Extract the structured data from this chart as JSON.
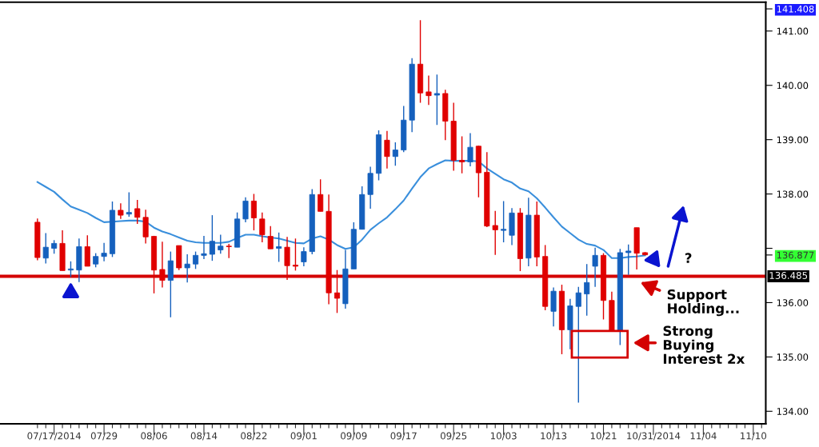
{
  "chart_data": {
    "type": "candlestick",
    "categories": [
      null,
      null,
      "07/17/2014",
      null,
      null,
      null,
      null,
      null,
      "07/29",
      null,
      null,
      null,
      null,
      null,
      "08/06",
      null,
      null,
      null,
      null,
      null,
      "08/14",
      null,
      null,
      null,
      null,
      null,
      "08/22",
      null,
      null,
      null,
      null,
      null,
      "09/01",
      null,
      null,
      null,
      null,
      null,
      "09/09",
      null,
      null,
      null,
      null,
      null,
      "09/17",
      null,
      null,
      null,
      null,
      null,
      "09/25",
      null,
      null,
      null,
      null,
      null,
      "10/03",
      null,
      null,
      null,
      null,
      null,
      "10/13",
      null,
      null,
      null,
      null,
      null,
      "10/21",
      null,
      null,
      null,
      null,
      null,
      "10/31/2014",
      null,
      null,
      null,
      null,
      null,
      "11/04",
      null,
      null,
      null,
      null,
      null,
      "11/10",
      null
    ],
    "ohlc": [
      [
        137.48,
        137.55,
        136.78,
        136.83
      ],
      [
        136.82,
        137.28,
        136.72,
        137.02
      ],
      [
        137.0,
        137.15,
        136.9,
        137.09
      ],
      [
        137.09,
        137.33,
        136.59,
        136.59
      ],
      [
        136.6,
        136.76,
        136.47,
        136.62
      ],
      [
        136.6,
        137.18,
        136.38,
        137.03
      ],
      [
        137.03,
        137.24,
        136.67,
        136.67
      ],
      [
        136.71,
        136.91,
        136.65,
        136.85
      ],
      [
        136.85,
        137.1,
        136.76,
        136.91
      ],
      [
        136.9,
        137.86,
        136.84,
        137.7
      ],
      [
        137.7,
        137.83,
        137.54,
        137.61
      ],
      [
        137.63,
        138.03,
        137.58,
        137.66
      ],
      [
        137.73,
        137.89,
        137.45,
        137.57
      ],
      [
        137.57,
        137.71,
        137.09,
        137.21
      ],
      [
        137.22,
        137.23,
        136.17,
        136.6
      ],
      [
        136.61,
        137.12,
        136.28,
        136.41
      ],
      [
        136.41,
        136.94,
        135.73,
        136.77
      ],
      [
        137.05,
        137.05,
        136.6,
        136.64
      ],
      [
        136.64,
        136.89,
        136.37,
        136.71
      ],
      [
        136.71,
        136.94,
        136.62,
        136.87
      ],
      [
        136.87,
        137.23,
        136.8,
        136.9
      ],
      [
        136.89,
        137.61,
        136.77,
        137.13
      ],
      [
        136.97,
        137.25,
        136.9,
        137.04
      ],
      [
        137.04,
        137.08,
        136.82,
        137.03
      ],
      [
        137.02,
        137.66,
        137.02,
        137.54
      ],
      [
        137.54,
        137.94,
        137.48,
        137.87
      ],
      [
        137.87,
        138.0,
        137.33,
        137.56
      ],
      [
        137.54,
        137.66,
        137.11,
        137.25
      ],
      [
        137.22,
        137.41,
        136.99,
        136.99
      ],
      [
        137.0,
        137.29,
        136.75,
        137.03
      ],
      [
        137.02,
        137.21,
        136.42,
        136.68
      ],
      [
        136.69,
        137.18,
        136.59,
        136.67
      ],
      [
        136.75,
        137.02,
        136.67,
        136.94
      ],
      [
        136.94,
        138.09,
        136.89,
        137.99
      ],
      [
        137.99,
        138.27,
        137.68,
        137.68
      ],
      [
        137.68,
        137.99,
        135.97,
        136.18
      ],
      [
        136.18,
        136.6,
        135.81,
        136.08
      ],
      [
        135.98,
        136.97,
        135.89,
        136.62
      ],
      [
        136.62,
        137.48,
        136.62,
        137.35
      ],
      [
        137.35,
        138.14,
        137.35,
        137.99
      ],
      [
        137.99,
        138.5,
        137.73,
        138.38
      ],
      [
        138.38,
        139.17,
        138.25,
        139.09
      ],
      [
        138.99,
        139.16,
        138.47,
        138.69
      ],
      [
        138.69,
        138.95,
        138.52,
        138.81
      ],
      [
        138.81,
        139.62,
        138.77,
        139.36
      ],
      [
        139.36,
        140.5,
        139.14,
        140.39
      ],
      [
        140.39,
        141.2,
        139.68,
        139.86
      ],
      [
        139.88,
        140.18,
        139.64,
        139.81
      ],
      [
        139.82,
        140.2,
        139.27,
        139.85
      ],
      [
        139.85,
        139.92,
        138.99,
        139.34
      ],
      [
        139.34,
        139.68,
        138.43,
        138.62
      ],
      [
        138.62,
        139.06,
        138.38,
        138.59
      ],
      [
        138.59,
        139.12,
        138.51,
        138.86
      ],
      [
        138.88,
        138.89,
        137.94,
        138.39
      ],
      [
        138.4,
        138.77,
        137.39,
        137.41
      ],
      [
        137.42,
        137.69,
        136.88,
        137.34
      ],
      [
        137.33,
        137.87,
        137.11,
        137.35
      ],
      [
        137.24,
        137.74,
        137.06,
        137.65
      ],
      [
        137.65,
        137.74,
        136.58,
        136.81
      ],
      [
        136.82,
        137.93,
        136.67,
        137.61
      ],
      [
        137.61,
        137.86,
        136.67,
        136.84
      ],
      [
        136.85,
        137.06,
        135.86,
        135.93
      ],
      [
        135.84,
        136.28,
        135.56,
        136.21
      ],
      [
        136.21,
        136.33,
        135.05,
        135.5
      ],
      [
        135.5,
        136.07,
        135.14,
        135.94
      ],
      [
        135.93,
        136.29,
        134.16,
        136.18
      ],
      [
        136.16,
        136.71,
        135.76,
        136.37
      ],
      [
        136.67,
        137.01,
        136.29,
        136.87
      ],
      [
        136.87,
        136.91,
        135.69,
        136.04
      ],
      [
        136.04,
        136.2,
        135.49,
        135.49
      ],
      [
        135.49,
        136.99,
        135.22,
        136.92
      ],
      [
        136.92,
        137.07,
        136.51,
        136.95
      ],
      [
        137.38,
        137.38,
        136.61,
        136.91
      ],
      [
        136.92,
        136.93,
        136.87,
        136.88
      ],
      null,
      null,
      null,
      null,
      null,
      null,
      null,
      null,
      null,
      null,
      null,
      null,
      null,
      null
    ],
    "colors": [
      "#e00000",
      "#1560bd",
      "#1560bd",
      "#e00000",
      "#1560bd",
      "#1560bd",
      "#e00000",
      "#1560bd",
      "#1560bd",
      "#1560bd",
      "#e00000",
      "#1560bd",
      "#e00000",
      "#e00000",
      "#e00000",
      "#e00000",
      "#1560bd",
      "#e00000",
      "#1560bd",
      "#1560bd",
      "#1560bd",
      "#1560bd",
      "#1560bd",
      "#e00000",
      "#1560bd",
      "#1560bd",
      "#e00000",
      "#e00000",
      "#e00000",
      "#1560bd",
      "#e00000",
      "#e00000",
      "#1560bd",
      "#1560bd",
      "#e00000",
      "#e00000",
      "#e00000",
      "#1560bd",
      "#1560bd",
      "#1560bd",
      "#1560bd",
      "#1560bd",
      "#e00000",
      "#1560bd",
      "#1560bd",
      "#1560bd",
      "#e00000",
      "#e00000",
      "#1560bd",
      "#e00000",
      "#e00000",
      "#e00000",
      "#1560bd",
      "#e00000",
      "#e00000",
      "#e00000",
      "#1560bd",
      "#1560bd",
      "#e00000",
      "#1560bd",
      "#e00000",
      "#e00000",
      "#1560bd",
      "#e00000",
      "#1560bd",
      "#1560bd",
      "#1560bd",
      "#1560bd",
      "#e00000",
      "#e00000",
      "#1560bd",
      "#1560bd",
      "#e00000",
      "#e00000",
      null,
      null,
      null,
      null,
      null,
      null,
      null,
      null,
      null,
      null,
      null,
      null,
      null,
      null
    ],
    "series": [
      {
        "type": "line",
        "color": "#3a8fdc",
        "values": [
          138.22,
          138.13,
          138.04,
          137.9,
          137.77,
          137.71,
          137.65,
          137.56,
          137.48,
          137.49,
          137.5,
          137.51,
          137.51,
          137.49,
          137.38,
          137.31,
          137.26,
          137.2,
          137.14,
          137.11,
          137.1,
          137.1,
          137.1,
          137.12,
          137.19,
          137.25,
          137.25,
          137.22,
          137.2,
          137.18,
          137.14,
          137.1,
          137.09,
          137.18,
          137.22,
          137.16,
          137.06,
          136.99,
          137.02,
          137.16,
          137.34,
          137.46,
          137.57,
          137.72,
          137.88,
          138.1,
          138.31,
          138.47,
          138.55,
          138.62,
          138.61,
          138.61,
          138.61,
          138.6,
          138.47,
          138.37,
          138.27,
          138.21,
          138.1,
          138.05,
          137.92,
          137.75,
          137.57,
          137.4,
          137.28,
          137.16,
          137.08,
          137.05,
          136.97,
          136.82,
          136.82,
          136.84,
          136.85,
          136.87,
          null,
          null,
          null,
          null,
          null,
          null,
          null,
          null,
          null,
          null,
          null,
          null,
          null,
          null
        ]
      }
    ],
    "ylim": [
      133.77,
      141.53
    ],
    "yticks": [
      {
        "value": 134,
        "label": "134.00"
      },
      {
        "value": 135,
        "label": "135.00"
      },
      {
        "value": 136,
        "label": "136.00"
      },
      {
        "value": 137,
        "label": null
      },
      {
        "value": 138,
        "label": "138.00"
      },
      {
        "value": 139,
        "label": "139.00"
      },
      {
        "value": 140,
        "label": "140.00"
      },
      {
        "value": 141,
        "label": "141.00"
      },
      {
        "value": 141.408,
        "label": "141.408"
      },
      {
        "value": 136.877,
        "label": "136.877"
      }
    ],
    "ref_lines": [
      {
        "axis": "y",
        "value": 136.485,
        "label": "136.485",
        "color": "#d40000"
      }
    ],
    "annotations": [
      "Support\nHolding...",
      "Strong\nBuying\nInterest 2x",
      "?"
    ],
    "grid": false,
    "legend": false
  }
}
